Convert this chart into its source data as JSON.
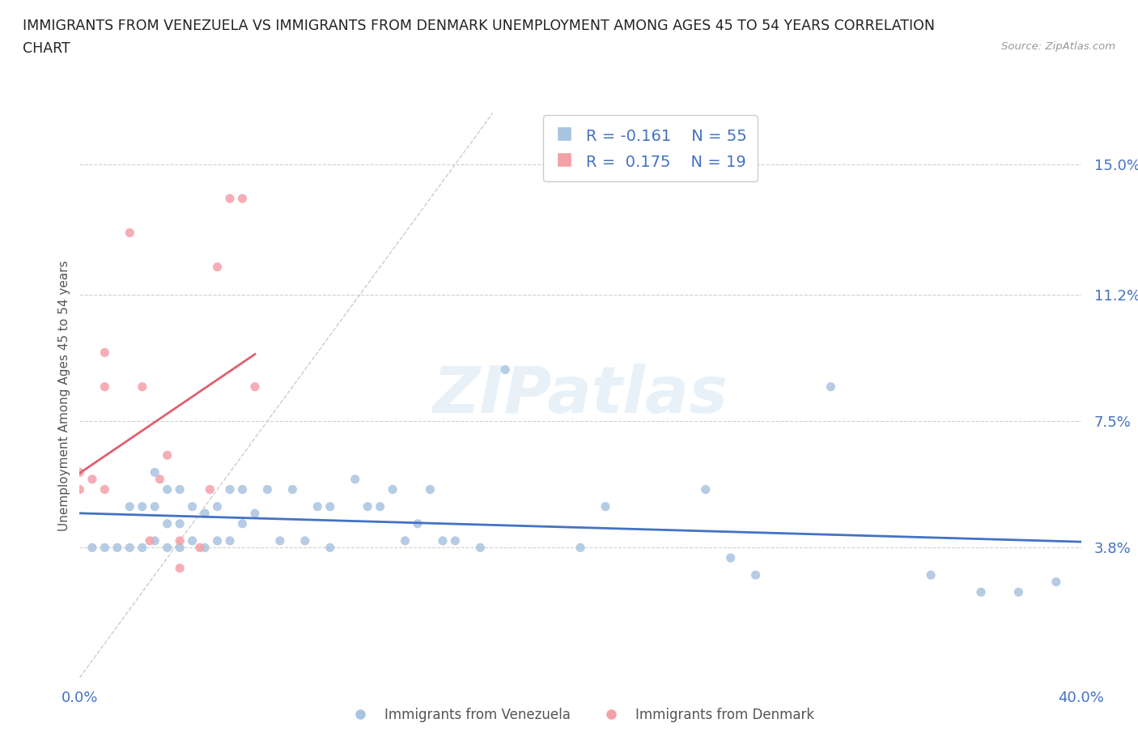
{
  "title_line1": "IMMIGRANTS FROM VENEZUELA VS IMMIGRANTS FROM DENMARK UNEMPLOYMENT AMONG AGES 45 TO 54 YEARS CORRELATION",
  "title_line2": "CHART",
  "source": "Source: ZipAtlas.com",
  "ylabel": "Unemployment Among Ages 45 to 54 years",
  "legend_label1": "Immigrants from Venezuela",
  "legend_label2": "Immigrants from Denmark",
  "legend_R1": "R = -0.161",
  "legend_N1": "N = 55",
  "legend_R2": "R =  0.175",
  "legend_N2": "N = 19",
  "color_venezuela": "#a8c4e0",
  "color_denmark": "#f4a0a8",
  "color_trend_venezuela": "#4472c4",
  "color_trend_denmark": "#e06070",
  "color_axis_labels": "#4472c4",
  "xmin": 0.0,
  "xmax": 0.4,
  "ymin": 0.0,
  "ymax": 0.165,
  "yticks": [
    0.038,
    0.075,
    0.112,
    0.15
  ],
  "ytick_labels": [
    "3.8%",
    "7.5%",
    "11.2%",
    "15.0%"
  ],
  "xticks": [
    0.0,
    0.05,
    0.1,
    0.15,
    0.2,
    0.25,
    0.3,
    0.35,
    0.4
  ],
  "venezuela_x": [
    0.005,
    0.01,
    0.015,
    0.02,
    0.02,
    0.025,
    0.025,
    0.03,
    0.03,
    0.03,
    0.035,
    0.035,
    0.035,
    0.04,
    0.04,
    0.04,
    0.045,
    0.045,
    0.05,
    0.05,
    0.055,
    0.055,
    0.06,
    0.06,
    0.065,
    0.065,
    0.07,
    0.075,
    0.08,
    0.085,
    0.09,
    0.095,
    0.1,
    0.1,
    0.11,
    0.115,
    0.12,
    0.125,
    0.13,
    0.135,
    0.14,
    0.145,
    0.15,
    0.16,
    0.17,
    0.2,
    0.21,
    0.25,
    0.26,
    0.27,
    0.3,
    0.34,
    0.36,
    0.375,
    0.39
  ],
  "venezuela_y": [
    0.038,
    0.038,
    0.038,
    0.038,
    0.05,
    0.038,
    0.05,
    0.04,
    0.05,
    0.06,
    0.038,
    0.045,
    0.055,
    0.038,
    0.045,
    0.055,
    0.04,
    0.05,
    0.038,
    0.048,
    0.04,
    0.05,
    0.04,
    0.055,
    0.045,
    0.055,
    0.048,
    0.055,
    0.04,
    0.055,
    0.04,
    0.05,
    0.038,
    0.05,
    0.058,
    0.05,
    0.05,
    0.055,
    0.04,
    0.045,
    0.055,
    0.04,
    0.04,
    0.038,
    0.09,
    0.038,
    0.05,
    0.055,
    0.035,
    0.03,
    0.085,
    0.03,
    0.025,
    0.025,
    0.028
  ],
  "denmark_x": [
    0.0,
    0.0,
    0.005,
    0.01,
    0.01,
    0.01,
    0.02,
    0.025,
    0.028,
    0.032,
    0.035,
    0.04,
    0.04,
    0.048,
    0.052,
    0.055,
    0.06,
    0.065,
    0.07
  ],
  "denmark_y": [
    0.055,
    0.06,
    0.058,
    0.055,
    0.085,
    0.095,
    0.13,
    0.085,
    0.04,
    0.058,
    0.065,
    0.032,
    0.04,
    0.038,
    0.055,
    0.12,
    0.14,
    0.14,
    0.085
  ],
  "watermark_text": "ZIPatlas",
  "background_color": "#ffffff"
}
